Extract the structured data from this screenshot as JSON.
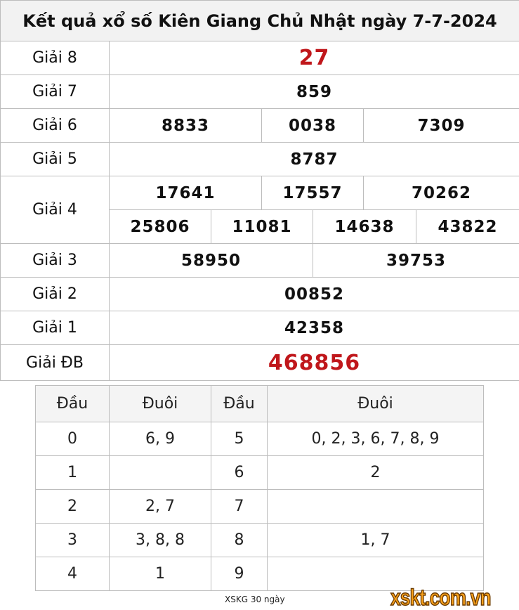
{
  "title": "Kết quả xổ số Kiên Giang Chủ Nhật ngày 7-7-2024",
  "prizes": {
    "g8": {
      "label": "Giải 8",
      "values": [
        "27"
      ]
    },
    "g7": {
      "label": "Giải 7",
      "values": [
        "859"
      ]
    },
    "g6": {
      "label": "Giải 6",
      "values": [
        "8833",
        "0038",
        "7309"
      ]
    },
    "g5": {
      "label": "Giải 5",
      "values": [
        "8787"
      ]
    },
    "g4": {
      "label": "Giải 4",
      "values": [
        "17641",
        "17557",
        "70262",
        "25806",
        "11081",
        "14638",
        "43822"
      ]
    },
    "g3": {
      "label": "Giải 3",
      "values": [
        "58950",
        "39753"
      ]
    },
    "g2": {
      "label": "Giải 2",
      "values": [
        "00852"
      ]
    },
    "g1": {
      "label": "Giải 1",
      "values": [
        "42358"
      ]
    },
    "db": {
      "label": "Giải ĐB",
      "values": [
        "468856"
      ]
    }
  },
  "loto": {
    "headers": [
      "Đầu",
      "Đuôi",
      "Đầu",
      "Đuôi"
    ],
    "rows": [
      [
        "0",
        "6, 9",
        "5",
        "0, 2, 3, 6, 7, 8, 9"
      ],
      [
        "1",
        "",
        "6",
        "2"
      ],
      [
        "2",
        "2, 7",
        "7",
        ""
      ],
      [
        "3",
        "3, 8, 8",
        "8",
        "1, 7"
      ],
      [
        "4",
        "1",
        "9",
        ""
      ]
    ]
  },
  "footer": {
    "link": "XSKG 30 ngày",
    "logo": "xskt.com.vn"
  },
  "colors": {
    "special": "#c0171b",
    "logo": "#f7a01a"
  }
}
